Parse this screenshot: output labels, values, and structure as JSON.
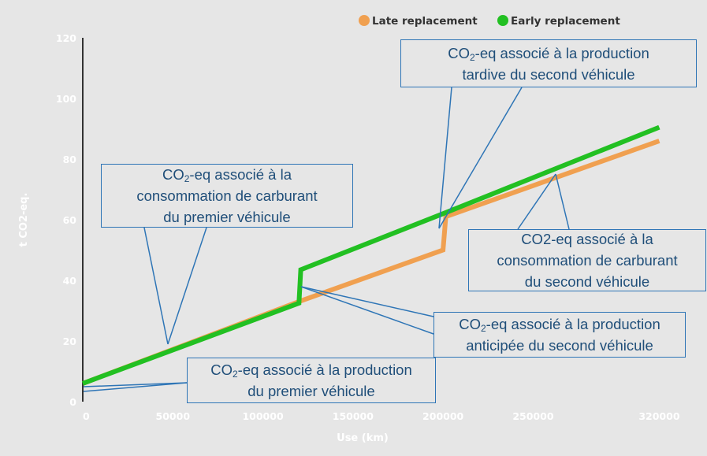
{
  "chart_data": {
    "type": "line",
    "xlabel": "Use (km)",
    "ylabel": "t CO2-eq.",
    "xlim": [
      0,
      350000
    ],
    "ylim": [
      0,
      120
    ],
    "x_ticks": [
      0,
      50000,
      100000,
      150000,
      200000,
      250000,
      320000
    ],
    "y_ticks": [
      0,
      20,
      40,
      60,
      80,
      100,
      120
    ],
    "legend_position": "top-right",
    "grid": false,
    "series": [
      {
        "name": "Late replacement",
        "color": "#f0a050",
        "points": [
          [
            0,
            6
          ],
          [
            120000,
            33
          ],
          [
            200000,
            50
          ],
          [
            201500,
            61
          ],
          [
            320000,
            86
          ]
        ]
      },
      {
        "name": "Early replacement",
        "color": "#22c022",
        "points": [
          [
            0,
            6
          ],
          [
            120000,
            32.5
          ],
          [
            121000,
            43.5
          ],
          [
            200000,
            62
          ],
          [
            320000,
            90.5
          ]
        ]
      }
    ],
    "annotations": [
      {
        "id": "prod-first",
        "lines": [
          [
            "CO",
            "2",
            "-eq associé à la production"
          ],
          [
            "du premier véhicule"
          ]
        ]
      },
      {
        "id": "fuel-first",
        "lines": [
          [
            "CO",
            "2",
            "-eq associé à la"
          ],
          [
            "consommation de carburant"
          ],
          [
            "du premier véhicule"
          ]
        ]
      },
      {
        "id": "prod-late",
        "lines": [
          [
            "CO",
            "2",
            "-eq associé à la production"
          ],
          [
            "tardive du second véhicule"
          ]
        ]
      },
      {
        "id": "fuel-second",
        "lines": [
          [
            "CO2-eq associé à la"
          ],
          [
            "consommation de carburant"
          ],
          [
            "du second véhicule"
          ]
        ]
      },
      {
        "id": "prod-early",
        "lines": [
          [
            "CO",
            "2",
            "-eq associé à la production"
          ],
          [
            "anticipée du second véhicule"
          ]
        ]
      }
    ]
  }
}
